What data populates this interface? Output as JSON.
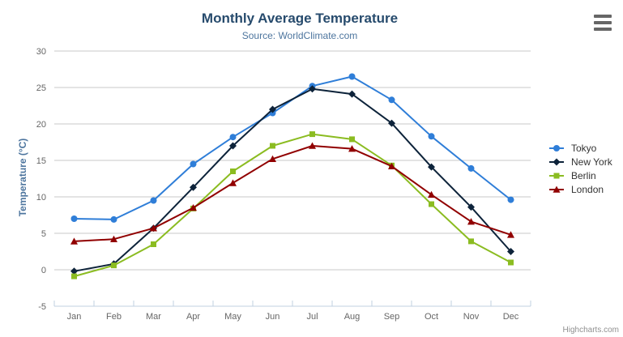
{
  "header": {
    "title": "Monthly Average Temperature",
    "subtitle": "Source: WorldClimate.com"
  },
  "credit": "Highcharts.com",
  "colors": {
    "title": "#274b6d",
    "subtitle": "#4d759e",
    "axis_title": "#4d759e",
    "tick_label": "#666666",
    "gridline": "#c8c8c8",
    "axis_line": "#c0d0e0",
    "legend_text": "#333333",
    "credit": "#909090",
    "menu_icon": "#666666"
  },
  "chart_data": {
    "type": "line",
    "title": "Monthly Average Temperature",
    "subtitle": "Source: WorldClimate.com",
    "xlabel": "",
    "ylabel": "Temperature (°C)",
    "categories": [
      "Jan",
      "Feb",
      "Mar",
      "Apr",
      "May",
      "Jun",
      "Jul",
      "Aug",
      "Sep",
      "Oct",
      "Nov",
      "Dec"
    ],
    "yticks": [
      -5,
      0,
      5,
      10,
      15,
      20,
      25,
      30
    ],
    "ylim": [
      -5,
      30
    ],
    "grid": true,
    "legend_position": "right",
    "series": [
      {
        "name": "Tokyo",
        "color": "#2f7ed8",
        "marker": "circle",
        "values": [
          7.0,
          6.9,
          9.5,
          14.5,
          18.2,
          21.5,
          25.2,
          26.5,
          23.3,
          18.3,
          13.9,
          9.6
        ]
      },
      {
        "name": "New York",
        "color": "#0d233a",
        "marker": "diamond",
        "values": [
          -0.2,
          0.8,
          5.7,
          11.3,
          17.0,
          22.0,
          24.8,
          24.1,
          20.1,
          14.1,
          8.6,
          2.5
        ]
      },
      {
        "name": "Berlin",
        "color": "#8bbc21",
        "marker": "square",
        "values": [
          -0.9,
          0.6,
          3.5,
          8.4,
          13.5,
          17.0,
          18.6,
          17.9,
          14.3,
          9.0,
          3.9,
          1.0
        ]
      },
      {
        "name": "London",
        "color": "#910000",
        "marker": "triangle",
        "values": [
          3.9,
          4.2,
          5.7,
          8.5,
          11.9,
          15.2,
          17.0,
          16.6,
          14.2,
          10.3,
          6.6,
          4.8
        ]
      }
    ]
  }
}
